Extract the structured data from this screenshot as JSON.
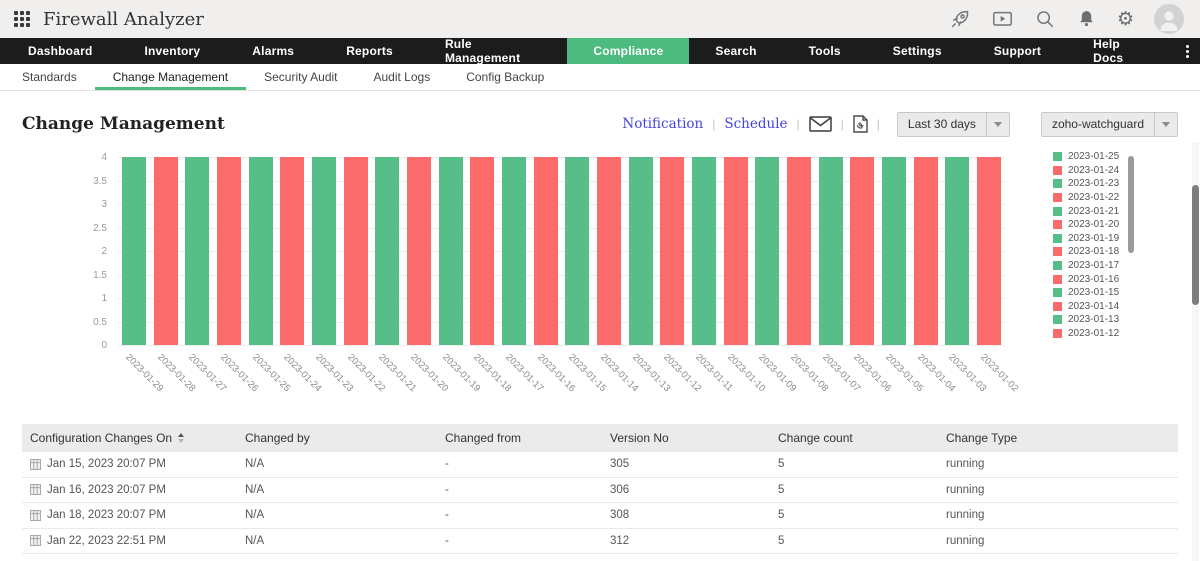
{
  "header": {
    "app_title": "Firewall Analyzer",
    "icons": [
      "apps-grid",
      "rocket",
      "demo-player",
      "search",
      "notifications-bell",
      "settings-gear",
      "user-avatar"
    ]
  },
  "nav": {
    "items": [
      {
        "label": "Dashboard",
        "active": false
      },
      {
        "label": "Inventory",
        "active": false
      },
      {
        "label": "Alarms",
        "active": false
      },
      {
        "label": "Reports",
        "active": false
      },
      {
        "label": "Rule Management",
        "active": false
      },
      {
        "label": "Compliance",
        "active": true
      },
      {
        "label": "Search",
        "active": false
      },
      {
        "label": "Tools",
        "active": false
      },
      {
        "label": "Settings",
        "active": false
      },
      {
        "label": "Support",
        "active": false
      },
      {
        "label": "Help Docs",
        "active": false
      }
    ]
  },
  "subnav": {
    "tabs": [
      {
        "label": "Standards",
        "active": false
      },
      {
        "label": "Change Management",
        "active": true
      },
      {
        "label": "Security Audit",
        "active": false
      },
      {
        "label": "Audit Logs",
        "active": false
      },
      {
        "label": "Config Backup",
        "active": false
      }
    ]
  },
  "toolbar": {
    "page_title": "Change Management",
    "notification_label": "Notification",
    "schedule_label": "Schedule",
    "separator": "|",
    "period_dropdown": "Last 30 days",
    "device_dropdown": "zoho-watchguard"
  },
  "chart_data": {
    "type": "bar",
    "title": "",
    "xlabel": "",
    "ylabel": "",
    "ylim": [
      0,
      4
    ],
    "yticks": [
      0,
      0.5,
      1,
      1.5,
      2,
      2.5,
      3,
      3.5,
      4
    ],
    "grid": true,
    "legend_position": "right",
    "categories": [
      "2023-01-29",
      "2023-01-28",
      "2023-01-27",
      "2023-01-26",
      "2023-01-25",
      "2023-01-24",
      "2023-01-23",
      "2023-01-22",
      "2023-01-21",
      "2023-01-20",
      "2023-01-19",
      "2023-01-18",
      "2023-01-17",
      "2023-01-16",
      "2023-01-15",
      "2023-01-14",
      "2023-01-13",
      "2023-01-12",
      "2023-01-11",
      "2023-01-10",
      "2023-01-09",
      "2023-01-08",
      "2023-01-07",
      "2023-01-06",
      "2023-01-05",
      "2023-01-04",
      "2023-01-03",
      "2023-01-02"
    ],
    "values": [
      4,
      4,
      4,
      4,
      4,
      4,
      4,
      4,
      4,
      4,
      4,
      4,
      4,
      4,
      4,
      4,
      4,
      4,
      4,
      4,
      4,
      4,
      4,
      4,
      4,
      4,
      4,
      4
    ],
    "bar_colors_alternate": [
      "#57be8a",
      "#fb6b6b"
    ],
    "legend": [
      {
        "label": "2023-01-25",
        "color": "#57be8a"
      },
      {
        "label": "2023-01-24",
        "color": "#fb6b6b"
      },
      {
        "label": "2023-01-23",
        "color": "#57be8a"
      },
      {
        "label": "2023-01-22",
        "color": "#fb6b6b"
      },
      {
        "label": "2023-01-21",
        "color": "#57be8a"
      },
      {
        "label": "2023-01-20",
        "color": "#fb6b6b"
      },
      {
        "label": "2023-01-19",
        "color": "#57be8a"
      },
      {
        "label": "2023-01-18",
        "color": "#fb6b6b"
      },
      {
        "label": "2023-01-17",
        "color": "#57be8a"
      },
      {
        "label": "2023-01-16",
        "color": "#fb6b6b"
      },
      {
        "label": "2023-01-15",
        "color": "#57be8a"
      },
      {
        "label": "2023-01-14",
        "color": "#fb6b6b"
      },
      {
        "label": "2023-01-13",
        "color": "#57be8a"
      },
      {
        "label": "2023-01-12",
        "color": "#fb6b6b"
      }
    ]
  },
  "table": {
    "columns": [
      "Configuration Changes On",
      "Changed by",
      "Changed from",
      "Version No",
      "Change count",
      "Change Type"
    ],
    "sorted_column": 0,
    "rows": [
      [
        "Jan 15, 2023 20:07 PM",
        "N/A",
        "-",
        "305",
        "5",
        "running"
      ],
      [
        "Jan 16, 2023 20:07 PM",
        "N/A",
        "-",
        "306",
        "5",
        "running"
      ],
      [
        "Jan 18, 2023 20:07 PM",
        "N/A",
        "-",
        "308",
        "5",
        "running"
      ],
      [
        "Jan 22, 2023 22:51 PM",
        "N/A",
        "-",
        "312",
        "5",
        "running"
      ]
    ]
  },
  "colors": {
    "nav_active_green": "#4dbb7f",
    "tab_underline_green": "#4cb97e",
    "bar_green": "#57be8a",
    "bar_red": "#fb6b6b",
    "link_blue": "#4545dd"
  }
}
